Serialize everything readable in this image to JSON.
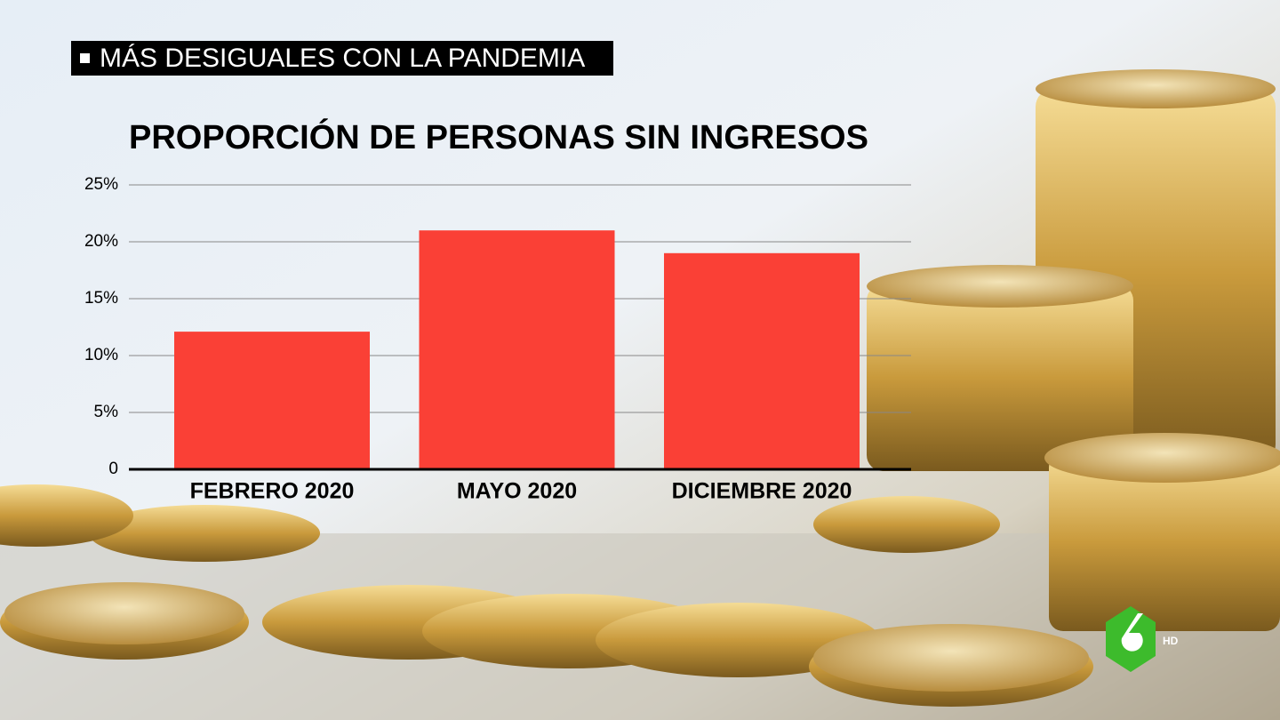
{
  "banner": "MÁS DESIGUALES CON LA PANDEMIA",
  "logo_label": "HD",
  "chart_data": {
    "type": "bar",
    "title": "PROPORCIÓN DE PERSONAS SIN INGRESOS",
    "categories": [
      "FEBRERO 2020",
      "MAYO 2020",
      "DICIEMBRE 2020"
    ],
    "values": [
      12.1,
      21.0,
      19.0
    ],
    "color": "#fa4036",
    "ylim": [
      0,
      25
    ],
    "yticks": [
      0,
      {
        "value": 5,
        "label": "5%"
      },
      {
        "value": 10,
        "label": "10%"
      },
      {
        "value": 15,
        "label": "15%"
      },
      {
        "value": 20,
        "label": "20%"
      },
      {
        "value": 25,
        "label": "25%"
      }
    ],
    "grid": true
  }
}
